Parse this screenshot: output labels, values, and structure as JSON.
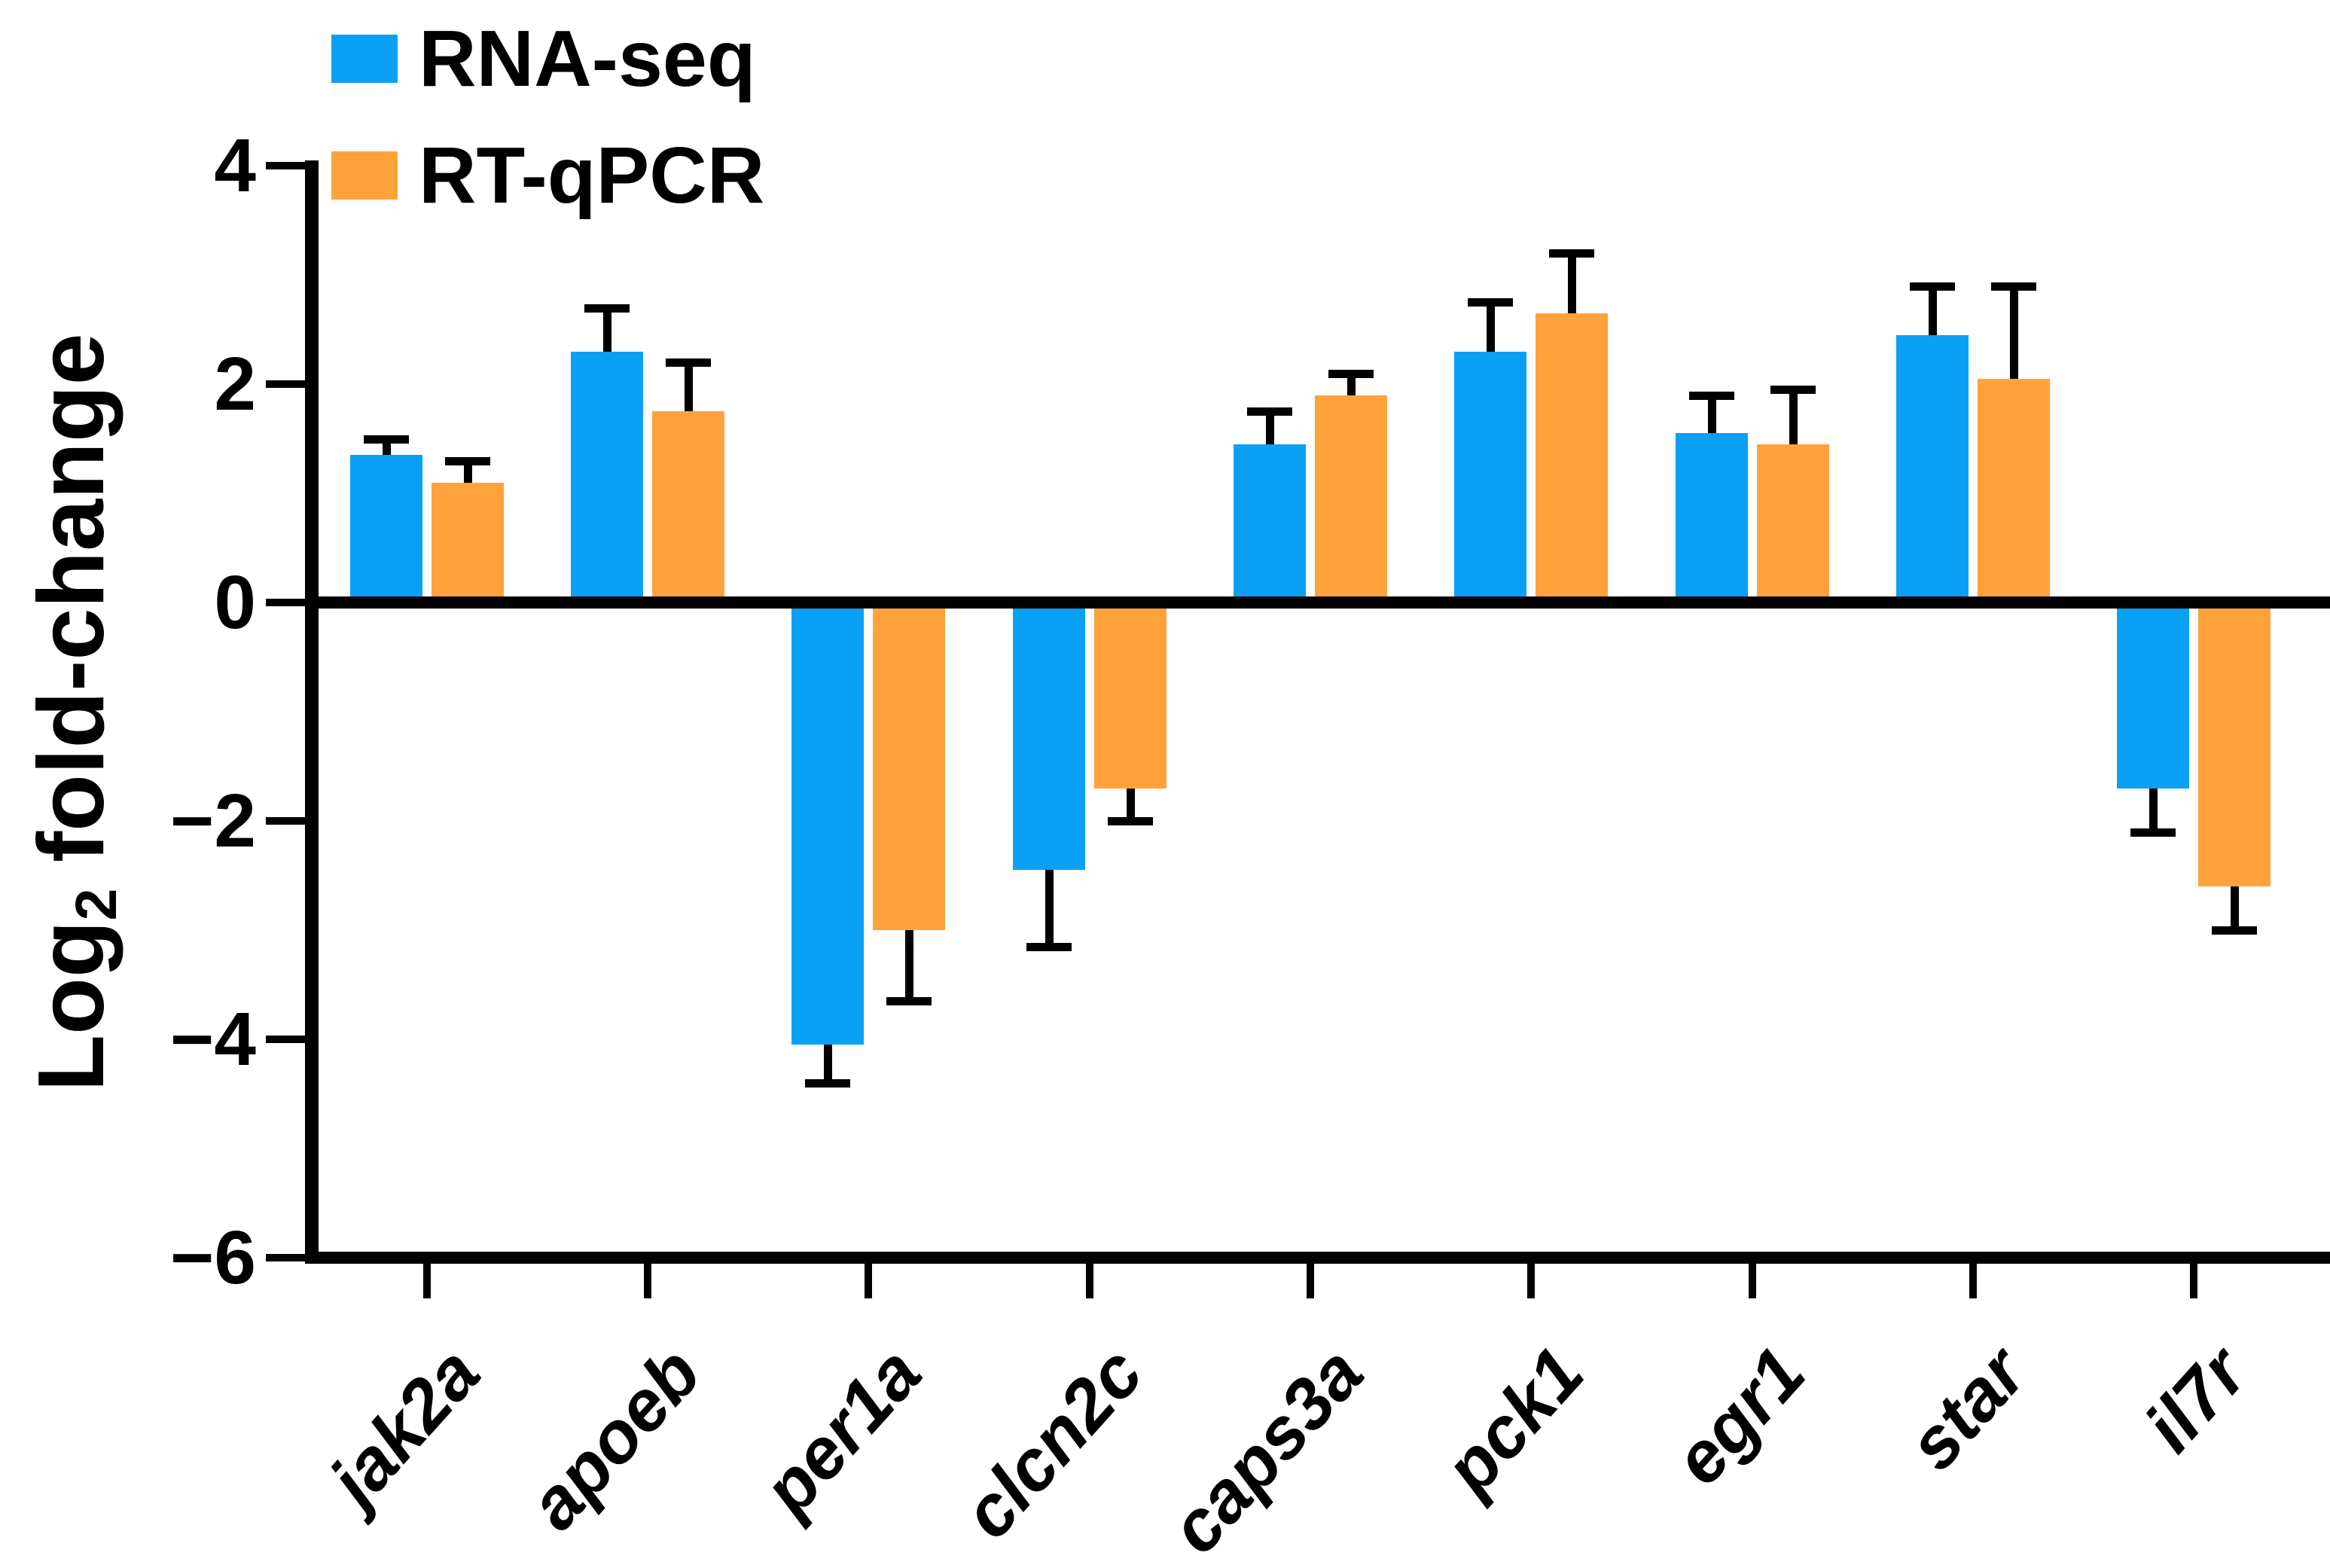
{
  "chart_data": {
    "type": "bar",
    "title": "",
    "ylabel": {
      "main": "Log",
      "sub": "2",
      "rest": " fold-change"
    },
    "categories": [
      "jak2a",
      "apoeb",
      "per1a",
      "clcn2c",
      "caps3a",
      "pck1",
      "egr1",
      "star",
      "il7r"
    ],
    "yticks": [
      4,
      2,
      0,
      -2,
      -4,
      -6
    ],
    "ylim": [
      -6,
      4
    ],
    "grid": false,
    "legend_position": "top-left-inside",
    "error_bars": "outward-only",
    "series": [
      {
        "name": "RNA-seq",
        "color": "#0aa0f6",
        "values": [
          1.35,
          2.3,
          -4.05,
          -2.45,
          1.45,
          2.3,
          1.55,
          2.45,
          -1.7
        ],
        "errors": [
          0.15,
          0.4,
          0.35,
          0.7,
          0.3,
          0.45,
          0.35,
          0.45,
          0.4
        ]
      },
      {
        "name": "RT-qPCR",
        "color": "#ffa23c",
        "values": [
          1.1,
          1.75,
          -3.0,
          -1.7,
          1.9,
          2.65,
          1.45,
          2.05,
          -2.6
        ],
        "errors": [
          0.2,
          0.45,
          0.65,
          0.3,
          0.2,
          0.55,
          0.5,
          0.85,
          0.4
        ]
      }
    ],
    "axis_color": "#000000",
    "background_color": "#ffffff"
  }
}
